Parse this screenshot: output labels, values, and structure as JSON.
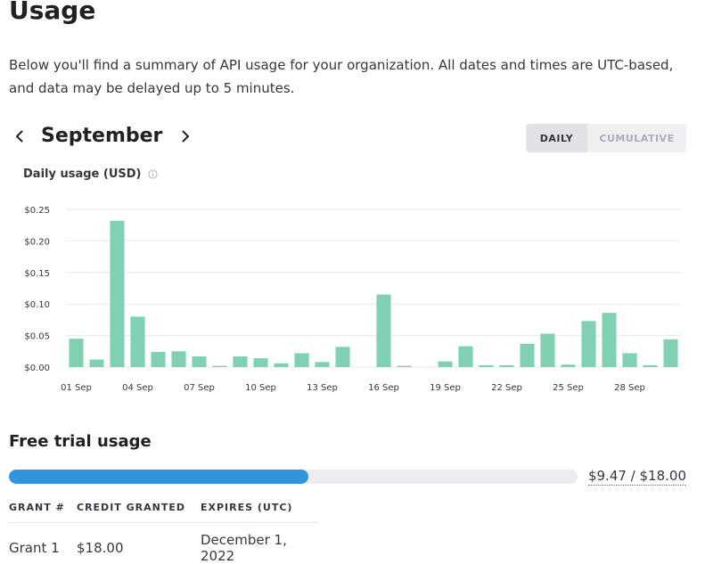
{
  "page": {
    "title": "Usage",
    "intro": "Below you'll find a summary of API usage for your organization. All dates and times are UTC-based, and data may be delayed up to 5 minutes."
  },
  "month_nav": {
    "prev_icon": "chevron-left-icon",
    "label": "September",
    "next_icon": "chevron-right-icon"
  },
  "view_toggle": {
    "daily_label": "DAILY",
    "cumulative_label": "CUMULATIVE",
    "selected": "DAILY"
  },
  "chart_header": {
    "title": "Daily usage (USD)",
    "info_icon": "info-icon"
  },
  "colors": {
    "bar": "#7fd1b1",
    "progress": "#2f95dc",
    "grid": "#e8e8ec",
    "axis_text": "#353740"
  },
  "chart_data": {
    "type": "bar",
    "title": "Daily usage (USD)",
    "xlabel": "",
    "ylabel": "",
    "ylim": [
      0,
      0.25
    ],
    "y_ticks": [
      {
        "value": 0,
        "label": "$0.00"
      },
      {
        "value": 0.05,
        "label": "$0.05"
      },
      {
        "value": 0.1,
        "label": "$0.10"
      },
      {
        "value": 0.15,
        "label": "$0.15"
      },
      {
        "value": 0.2,
        "label": "$0.20"
      },
      {
        "value": 0.25,
        "label": "$0.25"
      }
    ],
    "x_tick_labels": [
      {
        "index": 0,
        "label": "01 Sep"
      },
      {
        "index": 3,
        "label": "04 Sep"
      },
      {
        "index": 6,
        "label": "07 Sep"
      },
      {
        "index": 9,
        "label": "10 Sep"
      },
      {
        "index": 12,
        "label": "13 Sep"
      },
      {
        "index": 15,
        "label": "16 Sep"
      },
      {
        "index": 18,
        "label": "19 Sep"
      },
      {
        "index": 21,
        "label": "22 Sep"
      },
      {
        "index": 24,
        "label": "25 Sep"
      },
      {
        "index": 27,
        "label": "28 Sep"
      }
    ],
    "categories": [
      "01 Sep",
      "02 Sep",
      "03 Sep",
      "04 Sep",
      "05 Sep",
      "06 Sep",
      "07 Sep",
      "08 Sep",
      "09 Sep",
      "10 Sep",
      "11 Sep",
      "12 Sep",
      "13 Sep",
      "14 Sep",
      "15 Sep",
      "16 Sep",
      "17 Sep",
      "18 Sep",
      "19 Sep",
      "20 Sep",
      "21 Sep",
      "22 Sep",
      "23 Sep",
      "24 Sep",
      "25 Sep",
      "26 Sep",
      "27 Sep",
      "28 Sep",
      "29 Sep",
      "30 Sep"
    ],
    "values": [
      0.045,
      0.012,
      0.232,
      0.08,
      0.024,
      0.025,
      0.017,
      0.002,
      0.017,
      0.014,
      0.006,
      0.022,
      0.008,
      0.032,
      0.0,
      0.115,
      0.002,
      0.0,
      0.009,
      0.033,
      0.003,
      0.003,
      0.037,
      0.053,
      0.004,
      0.073,
      0.086,
      0.022,
      0.003,
      0.044
    ]
  },
  "free_trial": {
    "title": "Free trial usage",
    "used": 9.47,
    "total": 18.0,
    "amount_label": "$9.47 / $18.00"
  },
  "grants": {
    "headers": [
      "GRANT #",
      "CREDIT GRANTED",
      "EXPIRES (UTC)"
    ],
    "rows": [
      {
        "grant": "Grant 1",
        "credit": "$18.00",
        "expires": "December 1, 2022"
      }
    ]
  }
}
